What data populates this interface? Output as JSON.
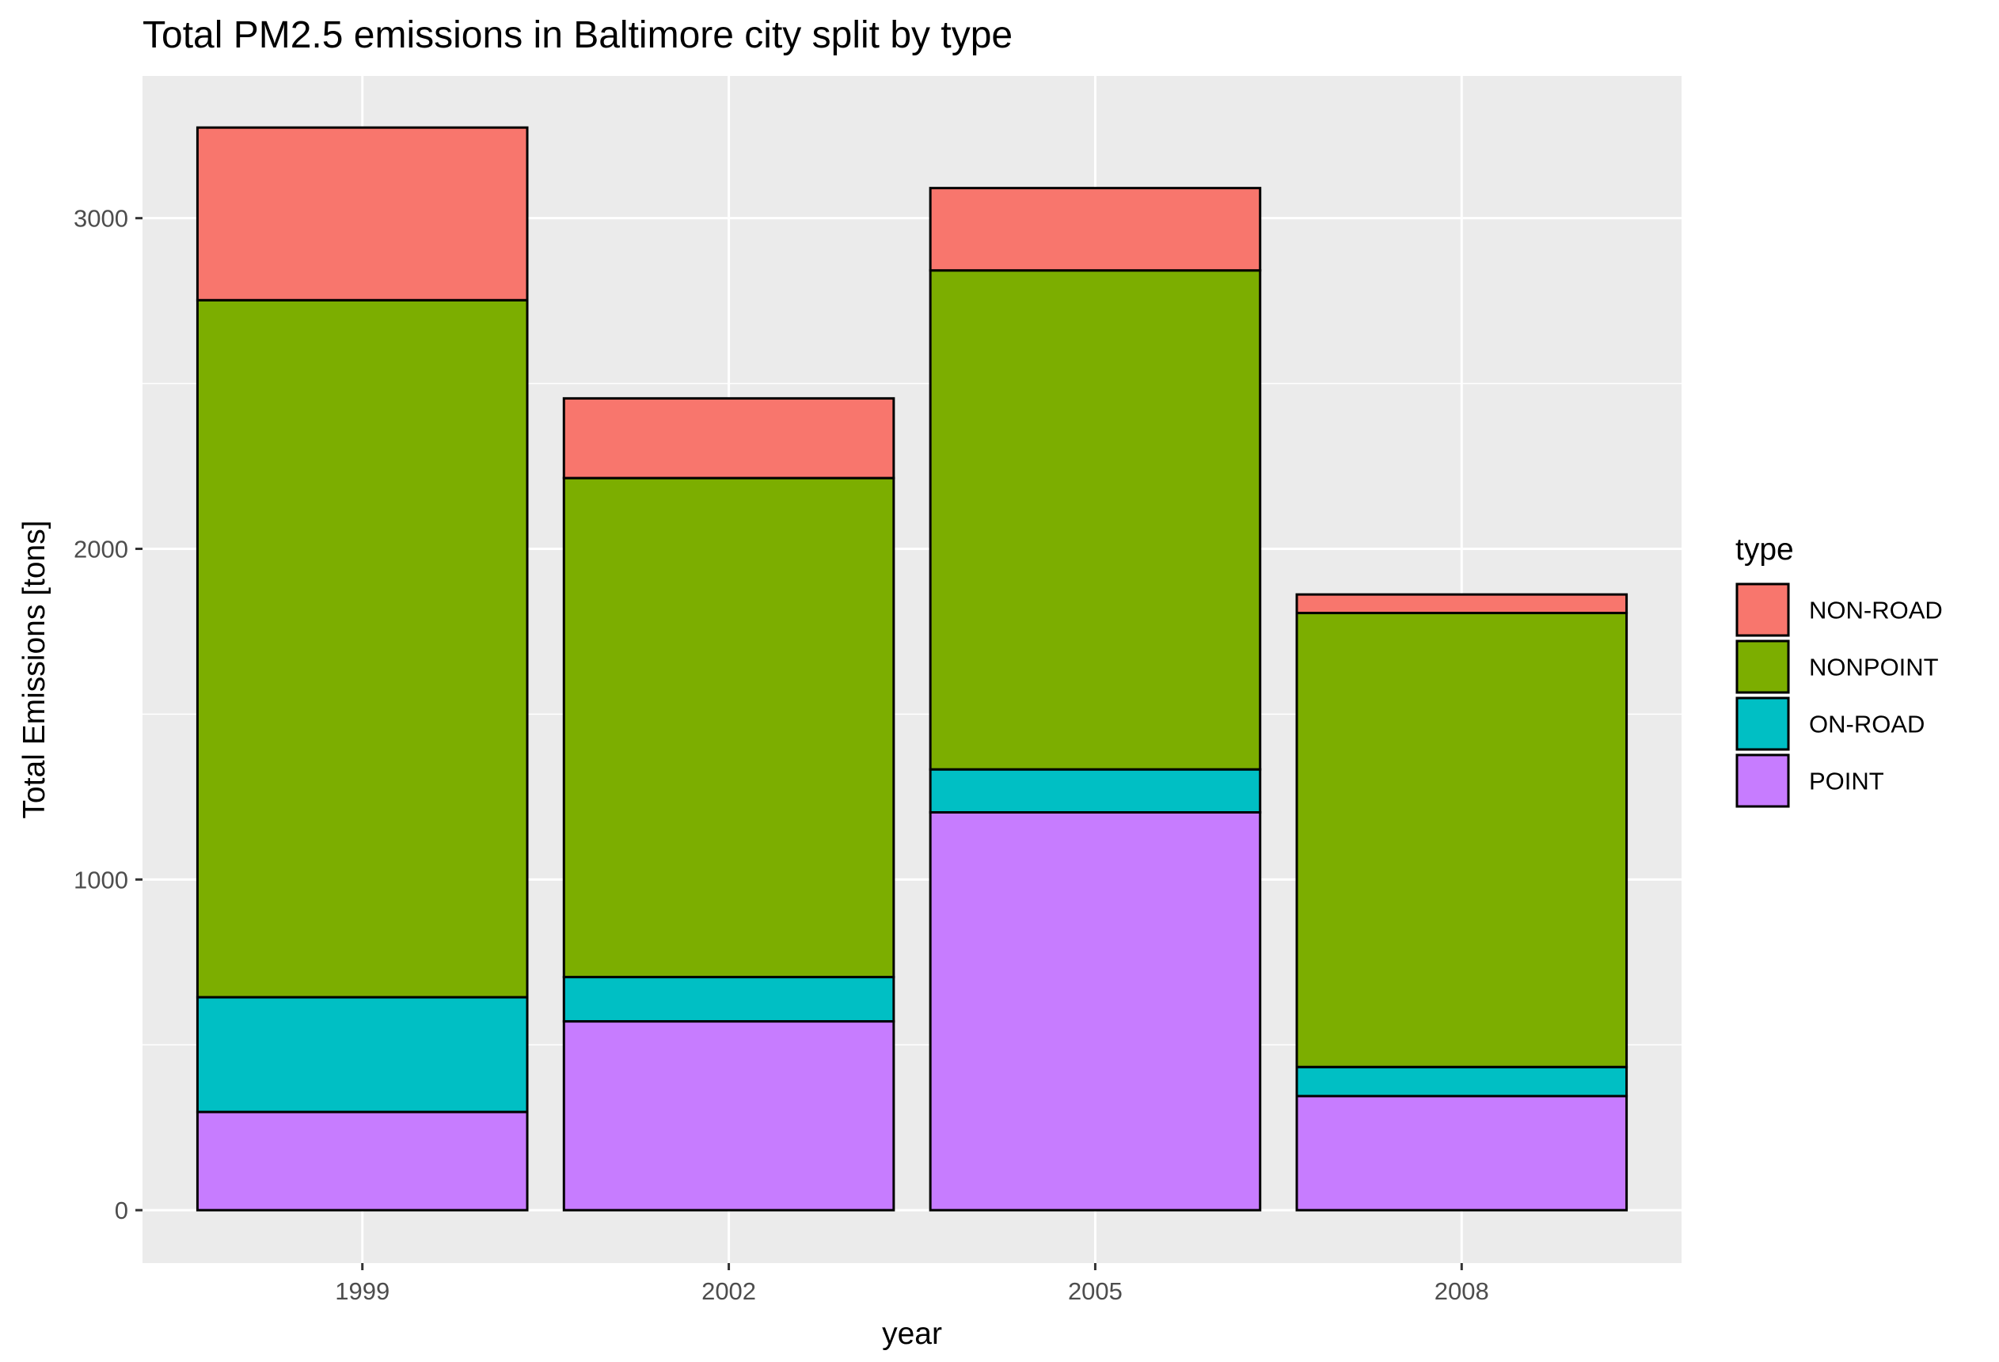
{
  "chart_data": {
    "type": "bar",
    "stacked": true,
    "title": "Total PM2.5 emissions in Baltimore city split by type",
    "xlabel": "year",
    "ylabel": "Total Emissions [tons]",
    "categories": [
      "1999",
      "2002",
      "2005",
      "2008"
    ],
    "yticks": [
      0,
      1000,
      2000,
      3000
    ],
    "ylim": [
      -160,
      3430
    ],
    "grid": true,
    "legend": {
      "title": "type",
      "position": "right"
    },
    "series": [
      {
        "name": "POINT",
        "color": "#C77CFF",
        "values": [
          297,
          571,
          1203,
          345
        ]
      },
      {
        "name": "ON-ROAD",
        "color": "#00BFC4",
        "values": [
          347,
          134,
          130,
          88
        ]
      },
      {
        "name": "NONPOINT",
        "color": "#7CAE00",
        "values": [
          2108,
          1509,
          1509,
          1373
        ]
      },
      {
        "name": "NON-ROAD",
        "color": "#F8766D",
        "values": [
          522,
          241,
          249,
          56
        ]
      }
    ],
    "legend_order": [
      "NON-ROAD",
      "NONPOINT",
      "ON-ROAD",
      "POINT"
    ],
    "colors": {
      "panel_background": "#EBEBEB",
      "grid": "#FFFFFF",
      "bar_outline": "#000000"
    }
  }
}
